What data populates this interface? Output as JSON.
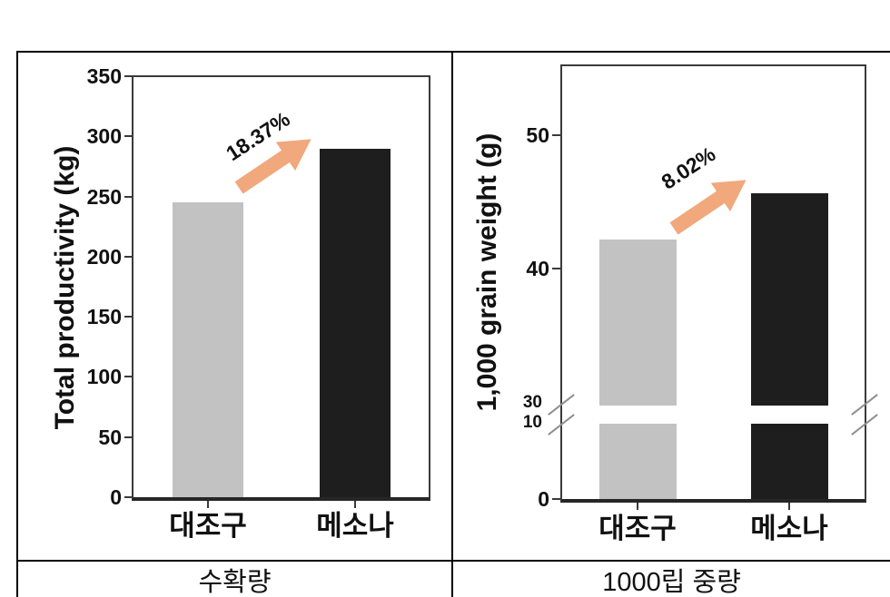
{
  "figure": {
    "type": "two-panel bar chart comparison table",
    "group_labels": [
      "대조구",
      "메소나"
    ]
  },
  "chart_data": [
    {
      "type": "bar",
      "title": "수확량",
      "ylabel": "Total productivity (kg)",
      "categories": [
        "대조구",
        "메소나"
      ],
      "series_names": [
        "control",
        "mesona"
      ],
      "values": [
        245,
        290
      ],
      "ylim": [
        0,
        350
      ],
      "yticks": [
        0,
        50,
        100,
        150,
        200,
        250,
        300,
        350
      ],
      "grid": "off",
      "legend": "none",
      "bar_colors": [
        "#c2c2c2",
        "#1e1e1e"
      ],
      "annotation": {
        "label": "18.37%",
        "kind": "increase-arrow",
        "arrow_color": "#f0a87c"
      }
    },
    {
      "type": "bar",
      "title": "1000립 중량",
      "ylabel": "1,000 grain weight (g)",
      "categories": [
        "대조구",
        "메소나"
      ],
      "series_names": [
        "control",
        "mesona"
      ],
      "values": [
        42.2,
        45.6
      ],
      "axis_break": {
        "between": [
          10,
          30
        ]
      },
      "ylim_lower": [
        0,
        10
      ],
      "ylim_upper": [
        30,
        55
      ],
      "yticks_lower": [
        0,
        10
      ],
      "yticks_upper": [
        30,
        40,
        50
      ],
      "grid": "off",
      "legend": "none",
      "bar_colors": [
        "#c2c2c2",
        "#1e1e1e"
      ],
      "annotation": {
        "label": "8.02%",
        "kind": "increase-arrow",
        "arrow_color": "#f0a87c"
      }
    }
  ]
}
